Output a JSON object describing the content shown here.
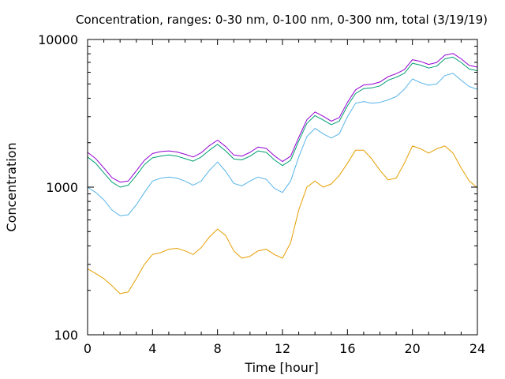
{
  "chart_data": {
    "type": "line",
    "title": "Concentration, ranges: 0-30 nm, 0-100 nm, 0-300 nm, total (3/19/19)",
    "xlabel": "Time [hour]",
    "ylabel": "Concentration",
    "xlim": [
      0,
      24
    ],
    "ylim": [
      100,
      10000
    ],
    "yscale": "log",
    "grid": false,
    "legend": "none",
    "x_ticks": [
      "0",
      "4",
      "8",
      "12",
      "16",
      "20",
      "24"
    ],
    "y_ticks": [
      "100",
      "1000",
      "10000"
    ],
    "x": [
      0,
      0.5,
      1,
      1.5,
      2,
      2.5,
      3,
      3.5,
      4,
      4.5,
      5,
      5.5,
      6,
      6.5,
      7,
      7.5,
      8,
      8.5,
      9,
      9.5,
      10,
      10.5,
      11,
      11.5,
      12,
      12.5,
      13,
      13.5,
      14,
      14.5,
      15,
      15.5,
      16,
      16.5,
      17,
      17.5,
      18,
      18.5,
      19,
      19.5,
      20,
      20.5,
      21,
      21.5,
      22,
      22.5,
      23,
      23.5,
      24
    ],
    "series": [
      {
        "color": "#e69f00",
        "values": [
          280,
          260,
          240,
          215,
          190,
          195,
          240,
          300,
          350,
          360,
          380,
          385,
          370,
          350,
          390,
          460,
          520,
          470,
          370,
          330,
          340,
          370,
          380,
          350,
          330,
          420,
          700,
          1000,
          1100,
          1000,
          1050,
          1200,
          1450,
          1780,
          1780,
          1550,
          1300,
          1120,
          1150,
          1450,
          1900,
          1820,
          1700,
          1820,
          1900,
          1700,
          1350,
          1100,
          990
        ]
      },
      {
        "color": "#56b4e9",
        "values": [
          1000,
          920,
          820,
          700,
          640,
          650,
          760,
          920,
          1100,
          1150,
          1170,
          1150,
          1100,
          1030,
          1100,
          1300,
          1480,
          1280,
          1060,
          1020,
          1100,
          1170,
          1130,
          980,
          920,
          1100,
          1600,
          2200,
          2500,
          2300,
          2150,
          2300,
          3000,
          3700,
          3800,
          3700,
          3750,
          3900,
          4100,
          4600,
          5400,
          5100,
          4900,
          5000,
          5700,
          5900,
          5300,
          4800,
          4600
        ]
      },
      {
        "color": "#009e73",
        "values": [
          1600,
          1450,
          1250,
          1080,
          1000,
          1030,
          1200,
          1420,
          1580,
          1620,
          1650,
          1620,
          1560,
          1500,
          1600,
          1780,
          1950,
          1760,
          1550,
          1530,
          1620,
          1760,
          1720,
          1530,
          1400,
          1520,
          2050,
          2700,
          3050,
          2850,
          2650,
          2800,
          3550,
          4300,
          4650,
          4700,
          4850,
          5300,
          5550,
          5900,
          6900,
          6700,
          6400,
          6600,
          7400,
          7600,
          7000,
          6300,
          6150
        ]
      },
      {
        "color": "#9400d3",
        "values": [
          1720,
          1560,
          1350,
          1160,
          1080,
          1100,
          1290,
          1520,
          1690,
          1740,
          1760,
          1730,
          1670,
          1600,
          1710,
          1910,
          2080,
          1880,
          1650,
          1620,
          1720,
          1870,
          1830,
          1630,
          1490,
          1620,
          2170,
          2860,
          3230,
          3020,
          2800,
          2960,
          3750,
          4560,
          4920,
          4980,
          5150,
          5600,
          5870,
          6250,
          7300,
          7100,
          6780,
          6990,
          7830,
          8040,
          7400,
          6670,
          6500
        ]
      }
    ]
  }
}
